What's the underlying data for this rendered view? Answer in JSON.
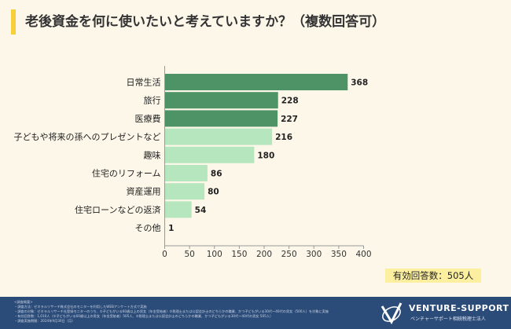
{
  "title": "老後資金を何に使いたいと考えていますか？（複数回答可）",
  "total_label": "有効回答数：505人",
  "chart_data": {
    "type": "bar",
    "orientation": "horizontal",
    "categories": [
      "日常生活",
      "旅行",
      "医療費",
      "子どもや将来の孫へのプレゼントなど",
      "趣味",
      "住宅のリフォーム",
      "資産運用",
      "住宅ローンなどの返済",
      "その他"
    ],
    "values": [
      368,
      228,
      227,
      216,
      180,
      86,
      80,
      54,
      1
    ],
    "highlight_top": 3,
    "colors": {
      "highlight": "#4e9366",
      "normal": "#b6e6bd"
    },
    "xlim": [
      0,
      400
    ],
    "xticks": [
      0,
      50,
      100,
      150,
      200,
      250,
      300,
      350,
      400
    ],
    "grid": false
  },
  "footer": {
    "notes": [
      "<調査概要>",
      "・調査方法：ゼネラルリサーチ株式会社のモニターを利用したWEBアンケート方式で実施",
      "・調査の対象：ゼネラルリサーチ社登録モニターのうち、①子どもがいる60歳以上の男女（年金受給者）②税理士または公認会計士のどちらかの職業、かつ子どもがいる30代～40代の男女（500人）を対象に実施",
      "・有効回答数：1,010人（①子どもがいる60歳以上の男女（年金受給者）505人、②税理士または公認会計士のどちらかの職業、かつ子どもがいる30代～40代の男女 505人）",
      "・調査実施期間：2024年9月30日（月）"
    ],
    "brand": "VENTURE-SUPPORT",
    "brand_sub": "ベンチャーサポート相続税理士法人"
  }
}
